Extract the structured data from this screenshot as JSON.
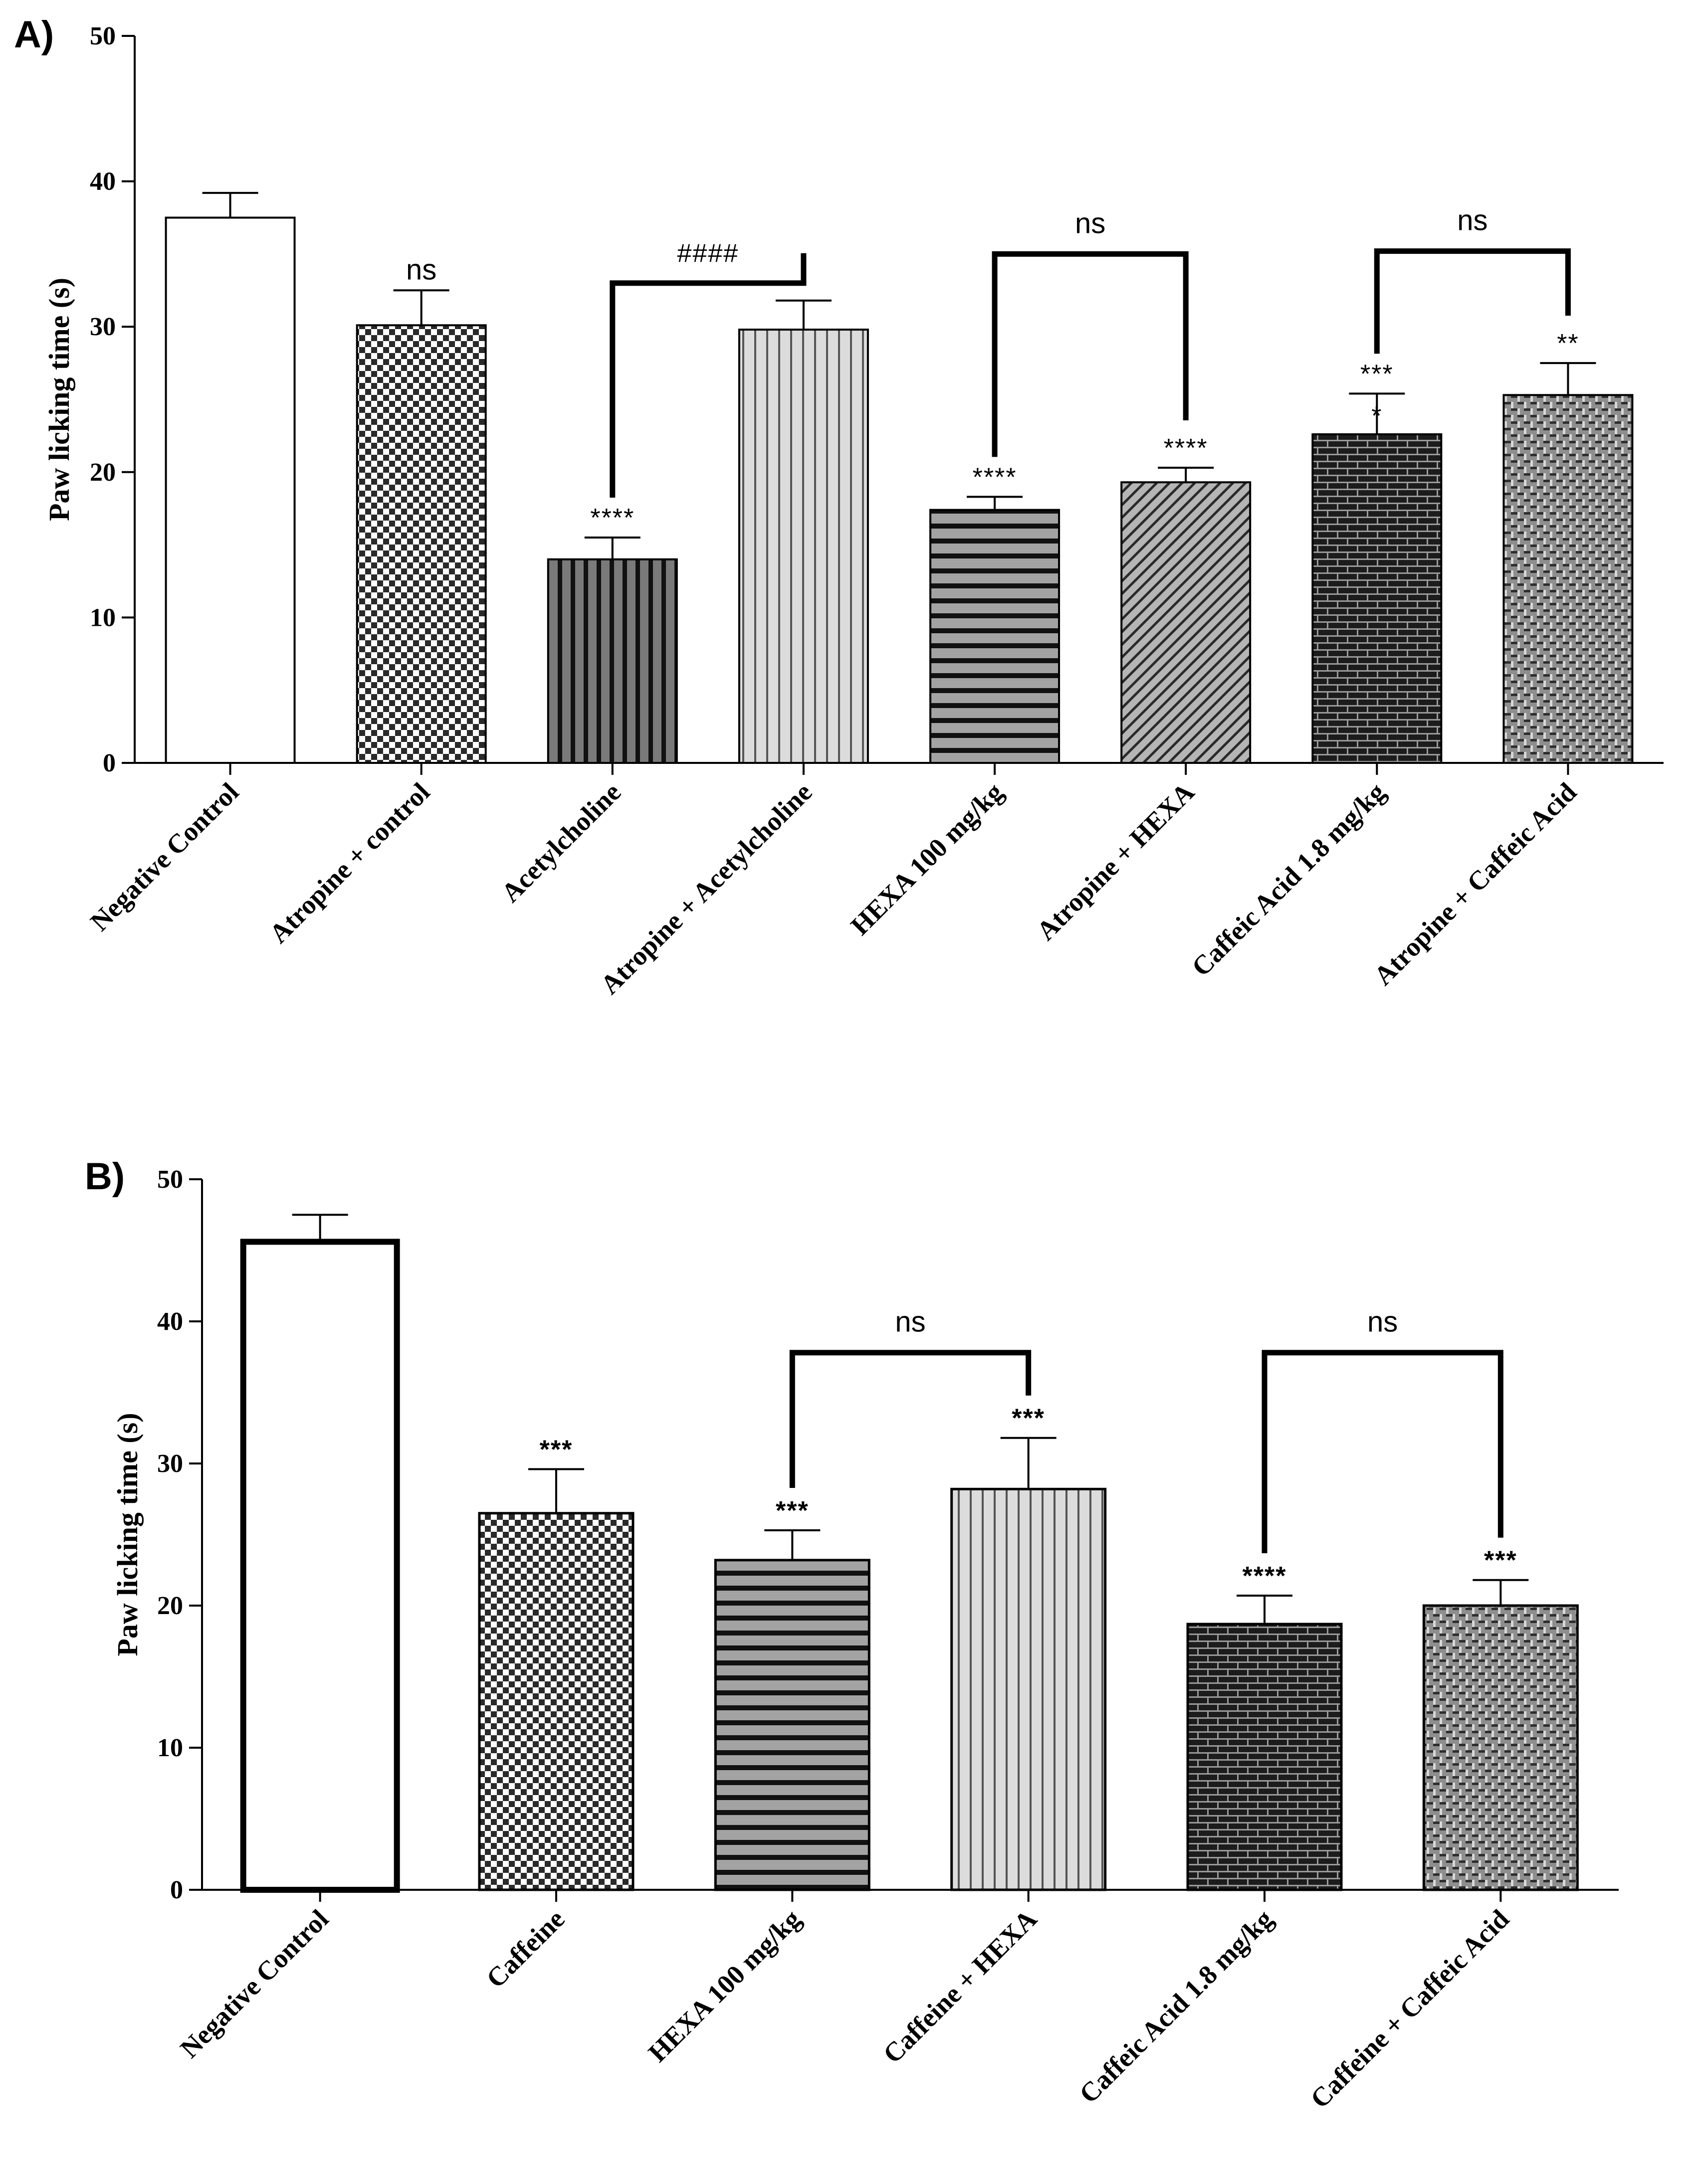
{
  "chart_data": [
    {
      "panel_label": "A)",
      "type": "bar",
      "title": "",
      "xlabel": "",
      "ylabel": "Paw licking time (s)",
      "ylim": [
        0,
        50
      ],
      "yticks": [
        "0",
        "10",
        "20",
        "30",
        "40",
        "50"
      ],
      "categories": [
        "Negative Control",
        "Atropine + control",
        "Acetylcholine",
        "Atropine + Acetylcholine",
        "HEXA 100 mg/kg",
        "Atropine + HEXA",
        "Caffeic Acid 1.8 mg/kg",
        "Atropine + Caffeic Acid"
      ],
      "values": [
        37.5,
        30.1,
        14.0,
        29.8,
        17.4,
        19.3,
        22.6,
        25.3
      ],
      "errors": [
        1.7,
        2.4,
        1.5,
        2.0,
        0.9,
        1.0,
        2.8,
        2.2
      ],
      "fills": [
        "white",
        "checker",
        "vstripe-dark",
        "vstripe-light",
        "hstripe",
        "diag",
        "brick",
        "weave"
      ],
      "annotations": [
        "",
        "ns",
        "****",
        "",
        "****",
        "****",
        "***",
        "**"
      ],
      "extra_annotations": [
        {
          "bar": 6,
          "text": "*"
        }
      ],
      "brackets": [
        {
          "from": 2,
          "to": 3,
          "label": "####",
          "level": 33.0
        },
        {
          "from": 4,
          "to": 5,
          "label": "ns",
          "level": 35.0
        },
        {
          "from": 6,
          "to": 7,
          "label": "ns",
          "level": 35.2
        }
      ]
    },
    {
      "panel_label": "B)",
      "type": "bar",
      "title": "",
      "xlabel": "",
      "ylabel": "Paw licking time (s)",
      "ylim": [
        0,
        50
      ],
      "yticks": [
        "0",
        "10",
        "20",
        "30",
        "40",
        "50"
      ],
      "categories": [
        "Negative Control",
        "Caffeine",
        "HEXA 100 mg/kg",
        "Caffeine + HEXA",
        "Caffeic Acid 1.8 mg/kg",
        "Caffeine + Caffeic Acid"
      ],
      "values": [
        45.6,
        26.5,
        23.2,
        28.2,
        18.7,
        20.0
      ],
      "errors": [
        1.9,
        3.1,
        2.1,
        3.6,
        2.0,
        1.8
      ],
      "fills": [
        "white",
        "checker",
        "hstripe",
        "vstripe-light",
        "brick",
        "weave"
      ],
      "annotations": [
        "",
        "***",
        "***",
        "***",
        "****",
        "***"
      ],
      "extra_annotations": [],
      "brackets": [
        {
          "from": 2,
          "to": 3,
          "label": "ns",
          "level": 37.8
        },
        {
          "from": 4,
          "to": 5,
          "label": "ns",
          "level": 37.8
        }
      ]
    }
  ]
}
